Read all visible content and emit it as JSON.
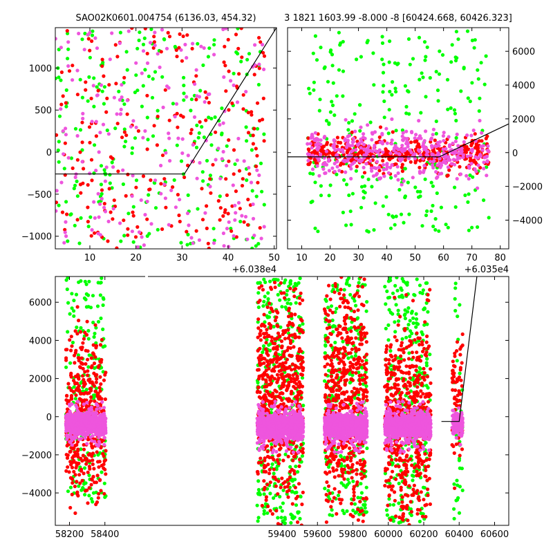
{
  "chart_data": [
    {
      "type": "scatter",
      "title": "SAO02K0601.004754 (6136.03, 454.32)",
      "offset_label": "+6.038e4",
      "xlim": [
        2.5,
        50.5
      ],
      "ylim": [
        -1150,
        1480
      ],
      "x_ticks": [
        10,
        20,
        30,
        40,
        50
      ],
      "y_ticks": [
        -1000,
        -500,
        0,
        500,
        1000
      ],
      "y_tick_side": "left",
      "fit_line": [
        [
          2.5,
          -260
        ],
        [
          30.5,
          -260
        ],
        [
          50.5,
          1480
        ]
      ],
      "series": [
        {
          "color": "#00ff00",
          "clusters": [
            {
              "x": [
                2.5,
                48
              ],
              "y": [
                -1150,
                1480
              ],
              "n": 230,
              "spread": 1
            }
          ]
        },
        {
          "color": "#ff0000",
          "clusters": [
            {
              "x": [
                2.5,
                48
              ],
              "y": [
                -1150,
                1480
              ],
              "n": 230,
              "spread": 1
            }
          ]
        },
        {
          "color": "#ee55dd",
          "clusters": [
            {
              "x": [
                2.5,
                48
              ],
              "y": [
                -1150,
                1480
              ],
              "n": 200,
              "spread": 1
            }
          ]
        }
      ]
    },
    {
      "type": "scatter",
      "title": "3 1821 1603.99 -8.000 -8 [60424.668, 60426.323]",
      "offset_label": "+6.035e4",
      "xlim": [
        5,
        83
      ],
      "ylim": [
        -5700,
        7400
      ],
      "x_ticks": [
        10,
        20,
        30,
        40,
        50,
        60,
        70,
        80
      ],
      "y_ticks": [
        -4000,
        -2000,
        0,
        2000,
        4000,
        6000
      ],
      "y_tick_side": "right",
      "fit_line": [
        [
          5,
          -250
        ],
        [
          58.5,
          -250
        ],
        [
          83,
          1700
        ]
      ],
      "series": [
        {
          "color": "#00ff00",
          "clusters": [
            {
              "x": [
                12,
                76
              ],
              "y": [
                -4700,
                7200
              ],
              "n": 260,
              "spread": 1
            }
          ]
        },
        {
          "color": "#ff0000",
          "clusters": [
            {
              "x": [
                12,
                76
              ],
              "y": [
                -900,
                700
              ],
              "n": 420,
              "spread": 0.6
            }
          ]
        },
        {
          "color": "#ee55dd",
          "clusters": [
            {
              "x": [
                12,
                76
              ],
              "y": [
                -1600,
                1500
              ],
              "n": 380,
              "spread": 0.5
            }
          ]
        }
      ]
    },
    {
      "type": "scatter",
      "title": "",
      "offset_label": "",
      "xlim": [
        58120,
        60680
      ],
      "ylim": [
        -5700,
        7350
      ],
      "x_ticks": [
        58200,
        58400,
        59400,
        59600,
        59800,
        60000,
        60200,
        60400,
        60600
      ],
      "y_ticks": [
        -4000,
        -2000,
        0,
        2000,
        4000,
        6000
      ],
      "y_tick_side": "left",
      "x_axis_break": [
        58480,
        58610
      ],
      "fit_line": [
        [
          60300,
          -250
        ],
        [
          60400,
          -250
        ],
        [
          60500,
          7350
        ]
      ],
      "series": [
        {
          "color": "#00ff00",
          "clusters": [
            {
              "x": [
                58180,
                58405
              ],
              "y": [
                -4500,
                7300
              ],
              "n": 180,
              "spread": 1
            },
            {
              "x": [
                59260,
                59520
              ],
              "y": [
                -5600,
                7300
              ],
              "n": 330,
              "spread": 1
            },
            {
              "x": [
                59640,
                59880
              ],
              "y": [
                -5200,
                7300
              ],
              "n": 260,
              "spread": 1
            },
            {
              "x": [
                59980,
                60240
              ],
              "y": [
                -5600,
                7300
              ],
              "n": 300,
              "spread": 1
            },
            {
              "x": [
                60360,
                60420
              ],
              "y": [
                -5600,
                7300
              ],
              "n": 40,
              "spread": 1
            }
          ]
        },
        {
          "color": "#ff0000",
          "clusters": [
            {
              "x": [
                58180,
                58405
              ],
              "y": [
                -4500,
                4200
              ],
              "n": 420,
              "spread": 0.5
            },
            {
              "x": [
                59260,
                59520
              ],
              "y": [
                -5200,
                6800
              ],
              "n": 620,
              "spread": 0.5
            },
            {
              "x": [
                59640,
                59880
              ],
              "y": [
                -5000,
                7000
              ],
              "n": 560,
              "spread": 0.5
            },
            {
              "x": [
                59980,
                60240
              ],
              "y": [
                -5400,
                4800
              ],
              "n": 560,
              "spread": 0.5
            },
            {
              "x": [
                60360,
                60420
              ],
              "y": [
                -2500,
                3800
              ],
              "n": 70,
              "spread": 0.5
            }
          ]
        },
        {
          "color": "#ee55dd",
          "clusters": [
            {
              "x": [
                58180,
                58405
              ],
              "y": [
                -1600,
                800
              ],
              "n": 900,
              "spread": 0.22
            },
            {
              "x": [
                59260,
                59520
              ],
              "y": [
                -1900,
                800
              ],
              "n": 1200,
              "spread": 0.22
            },
            {
              "x": [
                59640,
                59880
              ],
              "y": [
                -1900,
                800
              ],
              "n": 1100,
              "spread": 0.22
            },
            {
              "x": [
                59980,
                60240
              ],
              "y": [
                -1900,
                800
              ],
              "n": 1100,
              "spread": 0.22
            },
            {
              "x": [
                60360,
                60420
              ],
              "y": [
                -1500,
                800
              ],
              "n": 120,
              "spread": 0.25
            }
          ]
        }
      ]
    }
  ]
}
